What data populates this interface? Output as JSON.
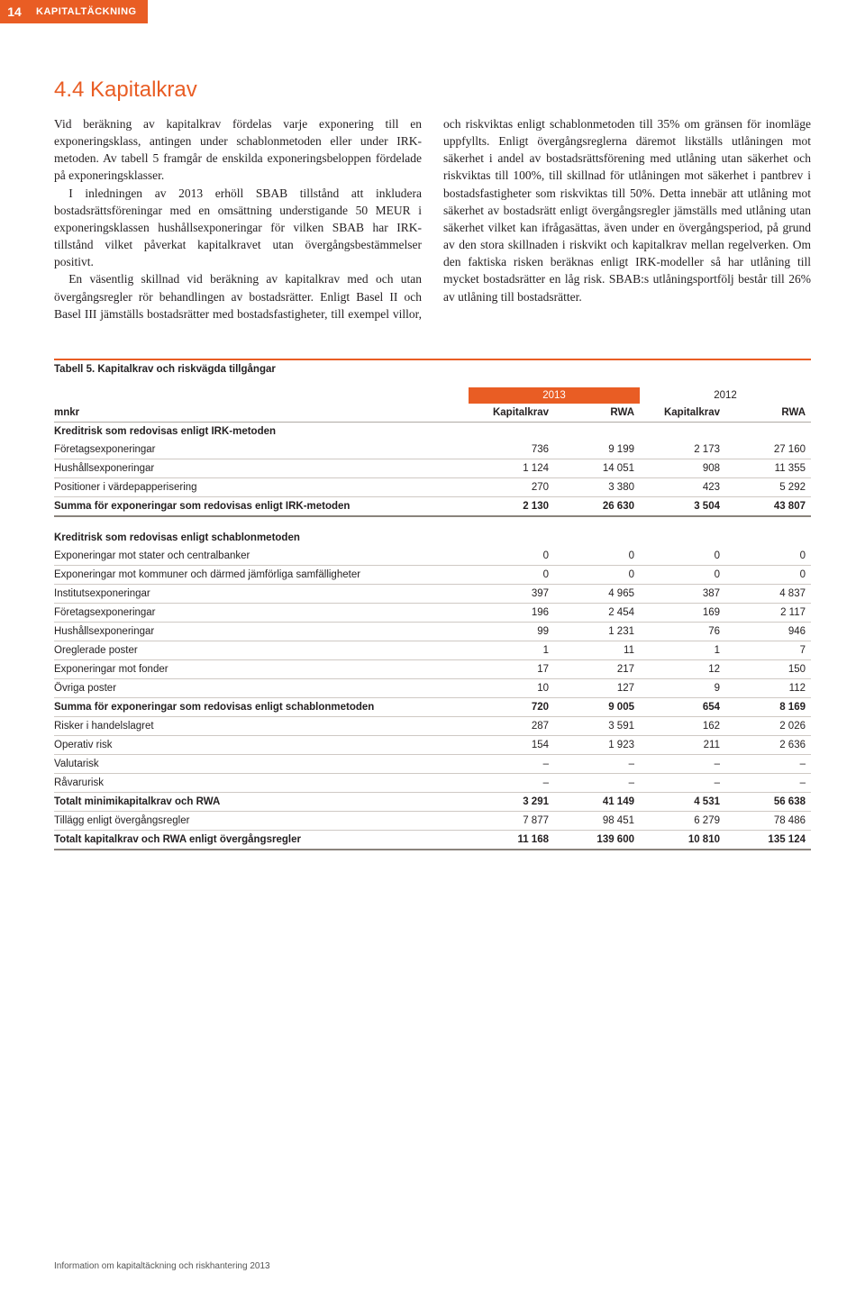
{
  "header": {
    "page_number": "14",
    "section": "KAPITALTÄCKNING"
  },
  "heading": "4.4 Kapitalkrav",
  "body": {
    "p1": "Vid beräkning av kapitalkrav fördelas varje exponering till en exponeringsklass, antingen under schablonmetoden eller under IRK-metoden. Av tabell 5 framgår de enskilda exponeringsbeloppen fördelade på exponeringsklasser.",
    "p2": "I inledningen av 2013 erhöll SBAB tillstånd att inkludera bostadsrättsföreningar med en omsättning understigande 50 MEUR i exponeringsklassen hushållsexponeringar för vilken SBAB har IRK-tillstånd vilket påverkat kapitalkravet utan övergångsbestämmelser positivt.",
    "p3": "En väsentlig skillnad vid beräkning av kapitalkrav med och utan övergångsregler rör behandlingen av bostadsrätter. Enligt Basel II och Basel III jämställs bostadsrätter med bostadsfastigheter, till exempel villor, och riskviktas enligt schablonmetoden till 35% om gränsen för inomläge uppfyllts. Enligt övergångsreglerna däremot likställs utlåningen mot säkerhet i andel av bostadsrättsförening med utlåning utan säkerhet och riskviktas till 100%, till skillnad för utlåningen mot säkerhet i pantbrev i bostadsfastigheter som riskviktas till 50%. Detta innebär att utlåning mot säkerhet av bostadsrätt enligt övergångsregler jämställs med utlåning utan säkerhet vilket kan ifrågasättas, även under en övergångsperiod, på grund av den stora skillnaden i riskvikt och kapitalkrav mellan regelverken. Om den faktiska risken beräknas enligt IRK-modeller så har utlåning till mycket bostadsrätter en låg risk. SBAB:s utlåningsportfölj består till 26% av utlåning till bostadsrätter."
  },
  "table": {
    "title": "Tabell 5. Kapitalkrav och riskvägda tillgångar",
    "year1": "2013",
    "year2": "2012",
    "unit": "mnkr",
    "col1": "Kapitalkrav",
    "col2": "RWA",
    "col3": "Kapitalkrav",
    "col4": "RWA",
    "s1_head": "Kreditrisk som redovisas enligt IRK-metoden",
    "s1_rows": [
      {
        "l": "Företagsexponeringar",
        "a": "736",
        "b": "9 199",
        "c": "2 173",
        "d": "27 160"
      },
      {
        "l": "Hushållsexponeringar",
        "a": "1 124",
        "b": "14 051",
        "c": "908",
        "d": "11 355"
      },
      {
        "l": "Positioner i värdepapperisering",
        "a": "270",
        "b": "3 380",
        "c": "423",
        "d": "5 292"
      }
    ],
    "s1_sum": {
      "l": "Summa för exponeringar som redovisas enligt IRK-metoden",
      "a": "2 130",
      "b": "26 630",
      "c": "3 504",
      "d": "43 807"
    },
    "s2_head": "Kreditrisk som redovisas enligt schablonmetoden",
    "s2_rows": [
      {
        "l": "Exponeringar mot stater och centralbanker",
        "a": "0",
        "b": "0",
        "c": "0",
        "d": "0"
      },
      {
        "l": "Exponeringar mot kommuner och därmed jämförliga samfälligheter",
        "a": "0",
        "b": "0",
        "c": "0",
        "d": "0"
      },
      {
        "l": "Institutsexponeringar",
        "a": "397",
        "b": "4 965",
        "c": "387",
        "d": "4 837"
      },
      {
        "l": "Företagsexponeringar",
        "a": "196",
        "b": "2 454",
        "c": "169",
        "d": "2 117"
      },
      {
        "l": "Hushållsexponeringar",
        "a": "99",
        "b": "1 231",
        "c": "76",
        "d": "946"
      },
      {
        "l": "Oreglerade poster",
        "a": "1",
        "b": "11",
        "c": "1",
        "d": "7"
      },
      {
        "l": "Exponeringar mot fonder",
        "a": "17",
        "b": "217",
        "c": "12",
        "d": "150"
      },
      {
        "l": "Övriga poster",
        "a": "10",
        "b": "127",
        "c": "9",
        "d": "112"
      }
    ],
    "s2_sum": {
      "l": "Summa för exponeringar som redovisas enligt schablonmetoden",
      "a": "720",
      "b": "9 005",
      "c": "654",
      "d": "8 169"
    },
    "s3_rows": [
      {
        "l": "Risker i handelslagret",
        "a": "287",
        "b": "3 591",
        "c": "162",
        "d": "2 026"
      },
      {
        "l": "Operativ risk",
        "a": "154",
        "b": "1 923",
        "c": "211",
        "d": "2 636"
      },
      {
        "l": "Valutarisk",
        "a": "–",
        "b": "–",
        "c": "–",
        "d": "–"
      },
      {
        "l": "Råvarurisk",
        "a": "–",
        "b": "–",
        "c": "–",
        "d": "–"
      }
    ],
    "s3_sum": {
      "l": "Totalt minimikapitalkrav och RWA",
      "a": "3 291",
      "b": "41 149",
      "c": "4 531",
      "d": "56 638"
    },
    "s4_row": {
      "l": "Tillägg enligt övergångsregler",
      "a": "7 877",
      "b": "98 451",
      "c": "6 279",
      "d": "78 486"
    },
    "total": {
      "l": "Totalt kapitalkrav och RWA enligt övergångsregler",
      "a": "11 168",
      "b": "139 600",
      "c": "10 810",
      "d": "135 124"
    }
  },
  "footer": "Information om kapitaltäckning och riskhantering 2013"
}
